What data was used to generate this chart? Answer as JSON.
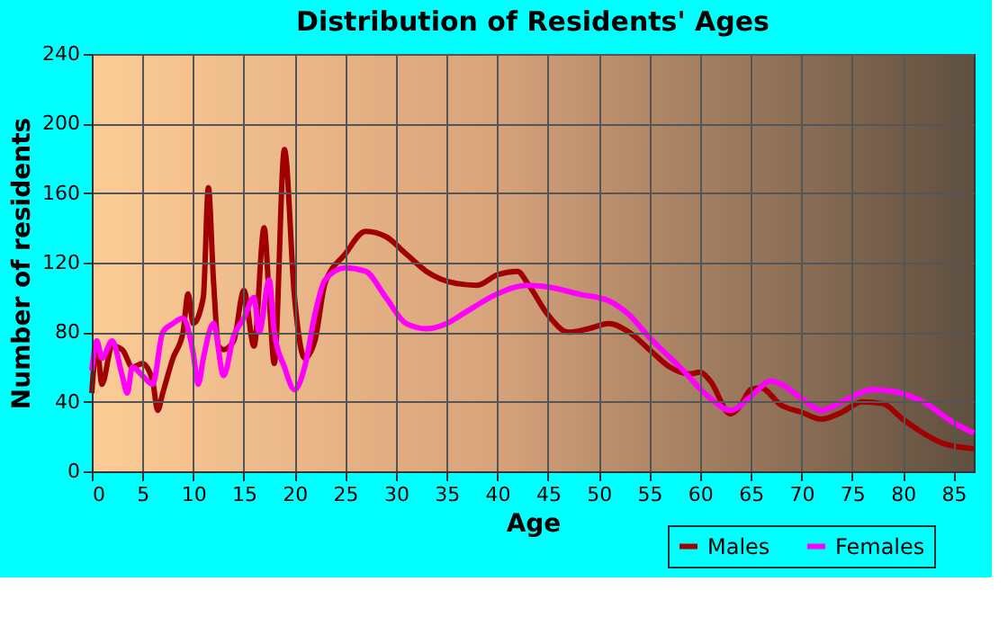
{
  "chart_data": {
    "type": "line",
    "title": "Distribution of Residents' Ages",
    "xlabel": "Age",
    "ylabel": "Number of residents",
    "xlim": [
      0,
      87
    ],
    "xticks": [
      0,
      5,
      10,
      15,
      20,
      25,
      30,
      35,
      40,
      45,
      50,
      55,
      60,
      65,
      70,
      75,
      80,
      85
    ],
    "ylim": [
      0,
      240
    ],
    "yticks": [
      0,
      40,
      80,
      120,
      160,
      200,
      240
    ],
    "grid": true,
    "legend": "bottom right",
    "line_style": "solid",
    "marker": "none",
    "series": [
      {
        "name": "Males",
        "color": "#a00000",
        "x": [
          0,
          0.5,
          1,
          2,
          3,
          4,
          5,
          6,
          6.5,
          7,
          8,
          9,
          9.5,
          10,
          11,
          11.5,
          12,
          12.5,
          13,
          14,
          15,
          16,
          17,
          17.5,
          18,
          19,
          20,
          21,
          22,
          23,
          25,
          27,
          29,
          31,
          33,
          36,
          38,
          40,
          42,
          43,
          45,
          47,
          49,
          51,
          53,
          55,
          57,
          59,
          60,
          61,
          63,
          64,
          65,
          66,
          68,
          70,
          72,
          74,
          76,
          78,
          80,
          82,
          84,
          87
        ],
        "values": [
          45,
          72,
          50,
          72,
          70,
          60,
          62,
          52,
          35,
          45,
          65,
          80,
          102,
          85,
          100,
          163,
          110,
          72,
          70,
          75,
          104,
          72,
          140,
          100,
          62,
          185,
          100,
          65,
          75,
          108,
          125,
          138,
          135,
          125,
          115,
          108,
          107,
          113,
          115,
          108,
          90,
          80,
          82,
          85,
          80,
          70,
          60,
          56,
          57,
          52,
          33,
          38,
          47,
          48,
          38,
          34,
          30,
          34,
          40,
          39,
          30,
          22,
          16,
          13
        ]
      },
      {
        "name": "Females",
        "color": "#ff00ff",
        "x": [
          0,
          0.5,
          1,
          2,
          3,
          3.5,
          4,
          5,
          6,
          7,
          8,
          9,
          10,
          10.5,
          11,
          12,
          13,
          14,
          15,
          16,
          16.5,
          17.5,
          18,
          19,
          20,
          21,
          22,
          23,
          25,
          27,
          29,
          31,
          33,
          35,
          37,
          40,
          43,
          45,
          48,
          51,
          53,
          55,
          58,
          61,
          63,
          65,
          67,
          68,
          70,
          72,
          74,
          77,
          79,
          82,
          85,
          87
        ],
        "values": [
          58,
          75,
          65,
          75,
          55,
          45,
          60,
          55,
          50,
          80,
          85,
          88,
          68,
          50,
          65,
          85,
          55,
          78,
          88,
          100,
          80,
          110,
          80,
          60,
          47,
          60,
          90,
          110,
          117,
          115,
          100,
          85,
          82,
          85,
          92,
          102,
          107,
          106,
          102,
          98,
          90,
          77,
          60,
          42,
          35,
          43,
          52,
          50,
          42,
          35,
          40,
          47,
          46,
          40,
          28,
          22
        ]
      }
    ]
  }
}
